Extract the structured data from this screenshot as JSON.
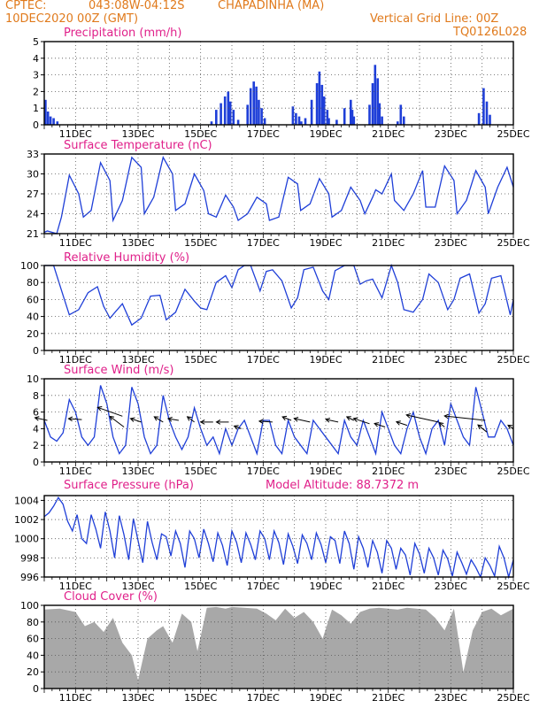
{
  "header": {
    "org": "CPTEC:",
    "coords": "043:08W-04:12S",
    "station": "CHAPADINHA (MA)",
    "date": "10DEC2020 00Z (GMT)",
    "grid_note": "Vertical Grid Line: 00Z",
    "model_code": "TQ0126L028"
  },
  "colors": {
    "header": "#e07a1c",
    "title": "#e0208a",
    "line": "#1f3fd8",
    "bar": "#1f3fd8",
    "cloud": "#a8a8a8"
  },
  "chart_data": [
    {
      "id": "precip",
      "type": "bar",
      "title": "Precipitation (mm/h)",
      "x_range_days": [
        10,
        25
      ],
      "ylim": [
        0,
        5
      ],
      "yticks": [
        0,
        1,
        2,
        3,
        4,
        5
      ],
      "x": [
        10.04,
        10.12,
        10.2,
        10.3,
        10.42,
        15.35,
        15.5,
        15.65,
        15.78,
        15.88,
        15.95,
        16.05,
        16.2,
        16.5,
        16.6,
        16.7,
        16.78,
        16.86,
        16.95,
        17.05,
        17.95,
        18.05,
        18.15,
        18.22,
        18.35,
        18.55,
        18.72,
        18.8,
        18.88,
        18.95,
        19.05,
        19.1,
        19.35,
        19.6,
        19.8,
        19.85,
        19.9,
        20.4,
        20.5,
        20.58,
        20.66,
        20.72,
        20.8,
        21.3,
        21.4,
        21.5,
        23.9,
        24.05,
        24.15,
        24.25
      ],
      "values": [
        1.5,
        0.8,
        0.5,
        0.4,
        0.2,
        0.2,
        0.9,
        1.3,
        1.7,
        2.0,
        1.4,
        0.9,
        0.3,
        1.2,
        2.2,
        2.6,
        2.3,
        1.5,
        1.0,
        0.4,
        1.1,
        0.7,
        0.5,
        0.2,
        0.4,
        1.5,
        2.5,
        3.2,
        2.4,
        1.7,
        0.9,
        0.4,
        0.3,
        1.0,
        1.5,
        0.9,
        0.5,
        1.2,
        2.5,
        3.6,
        2.8,
        1.3,
        0.5,
        0.2,
        1.2,
        0.5,
        0.7,
        2.2,
        1.4,
        0.6
      ]
    },
    {
      "id": "temp",
      "type": "line",
      "title": "Surface Temperature (nC)",
      "x_range_days": [
        10,
        25
      ],
      "ylim": [
        21,
        33
      ],
      "yticks": [
        21,
        24,
        27,
        30,
        33
      ],
      "x": [
        10,
        10.1,
        10.4,
        10.55,
        10.8,
        11.1,
        11.25,
        11.5,
        11.8,
        12.1,
        12.2,
        12.5,
        12.8,
        13.1,
        13.2,
        13.5,
        13.8,
        14.1,
        14.2,
        14.5,
        14.8,
        15.1,
        15.25,
        15.5,
        15.8,
        16.05,
        16.2,
        16.5,
        16.8,
        17.1,
        17.2,
        17.5,
        17.8,
        18.1,
        18.2,
        18.5,
        18.8,
        19.1,
        19.2,
        19.5,
        19.8,
        20.1,
        20.25,
        20.5,
        20.6,
        20.8,
        21.1,
        21.2,
        21.5,
        21.8,
        22.1,
        22.2,
        22.5,
        22.8,
        23.1,
        23.2,
        23.5,
        23.8,
        24.1,
        24.2,
        24.5,
        24.8,
        25
      ],
      "values": [
        21.2,
        21.4,
        21.0,
        23.5,
        29.8,
        27.0,
        23.5,
        24.5,
        31.7,
        29.0,
        23.0,
        26.0,
        32.5,
        31.0,
        24.0,
        26.5,
        32.5,
        30.0,
        24.5,
        25.5,
        30.0,
        27.5,
        24.0,
        23.5,
        26.8,
        25.0,
        23.0,
        24.0,
        26.5,
        25.5,
        23.0,
        23.5,
        29.5,
        28.5,
        24.5,
        25.5,
        29.3,
        27.0,
        23.5,
        24.5,
        28.0,
        26.0,
        24.0,
        26.5,
        27.6,
        27.0,
        30.0,
        26.0,
        24.5,
        27.0,
        30.5,
        25.0,
        25.0,
        31.2,
        29.0,
        24.0,
        26.0,
        30.5,
        28.0,
        24.0,
        28.0,
        31.0,
        28.0
      ]
    },
    {
      "id": "rh",
      "type": "line",
      "title": "Relative Humidity (%)",
      "x_range_days": [
        10,
        25
      ],
      "ylim": [
        0,
        100
      ],
      "yticks": [
        0,
        20,
        40,
        60,
        80,
        100
      ],
      "x": [
        10,
        10.3,
        10.6,
        10.8,
        11.1,
        11.4,
        11.7,
        11.9,
        12.1,
        12.5,
        12.8,
        13.1,
        13.4,
        13.7,
        13.9,
        14.2,
        14.5,
        14.8,
        15.0,
        15.2,
        15.5,
        15.8,
        16.0,
        16.2,
        16.4,
        16.6,
        16.9,
        17.1,
        17.3,
        17.6,
        17.9,
        18.1,
        18.3,
        18.6,
        18.9,
        19.1,
        19.3,
        19.6,
        19.9,
        20.1,
        20.3,
        20.5,
        20.8,
        21.1,
        21.3,
        21.5,
        21.8,
        22.1,
        22.3,
        22.6,
        22.9,
        23.1,
        23.3,
        23.6,
        23.9,
        24.1,
        24.3,
        24.6,
        24.9,
        25
      ],
      "values": [
        100,
        100,
        65,
        42,
        48,
        68,
        75,
        52,
        38,
        55,
        30,
        38,
        64,
        65,
        36,
        45,
        72,
        58,
        50,
        48,
        80,
        88,
        74,
        95,
        100,
        100,
        70,
        93,
        95,
        82,
        50,
        62,
        95,
        98,
        70,
        60,
        94,
        100,
        100,
        78,
        82,
        84,
        62,
        100,
        80,
        48,
        45,
        60,
        90,
        80,
        48,
        60,
        85,
        90,
        44,
        55,
        85,
        88,
        42,
        60
      ]
    },
    {
      "id": "wind",
      "type": "line",
      "title": "Surface Wind (m/s)",
      "x_range_days": [
        10,
        25
      ],
      "ylim": [
        0,
        10
      ],
      "yticks": [
        0,
        2,
        4,
        6,
        8,
        10
      ],
      "x": [
        10,
        10.2,
        10.4,
        10.6,
        10.8,
        11.0,
        11.2,
        11.4,
        11.6,
        11.8,
        12.0,
        12.2,
        12.4,
        12.6,
        12.8,
        13.0,
        13.2,
        13.4,
        13.6,
        13.8,
        14.0,
        14.2,
        14.4,
        14.6,
        14.8,
        15.0,
        15.2,
        15.4,
        15.6,
        15.8,
        16.0,
        16.2,
        16.4,
        16.6,
        16.8,
        17.0,
        17.2,
        17.4,
        17.6,
        17.8,
        18.0,
        18.2,
        18.4,
        18.6,
        18.8,
        19.0,
        19.2,
        19.4,
        19.6,
        19.8,
        20.0,
        20.2,
        20.4,
        20.6,
        20.8,
        21.0,
        21.2,
        21.4,
        21.6,
        21.8,
        22.0,
        22.2,
        22.4,
        22.6,
        22.8,
        23.0,
        23.2,
        23.4,
        23.6,
        23.8,
        24.0,
        24.2,
        24.4,
        24.6,
        24.8,
        25
      ],
      "values": [
        5,
        3,
        2.5,
        3.5,
        7.5,
        6,
        3,
        2,
        3,
        9.2,
        7,
        3,
        1,
        2,
        9,
        7,
        3,
        1,
        2,
        8,
        5,
        3,
        1.5,
        3,
        6.5,
        4,
        2,
        3,
        1,
        4,
        2,
        4,
        5,
        3,
        1,
        5,
        5,
        2,
        1,
        5,
        3,
        2,
        1,
        5,
        4,
        3,
        2,
        1,
        5,
        3,
        2,
        5,
        3,
        1,
        6,
        4,
        2,
        1,
        4,
        6,
        3,
        1,
        4,
        5,
        2,
        7,
        5,
        3,
        2,
        9,
        6,
        3,
        3,
        5,
        4,
        2
      ],
      "arrows": [
        {
          "x": 10.1,
          "y": 5,
          "dx": -14,
          "dy": -3
        },
        {
          "x": 11.2,
          "y": 5.1,
          "dx": -15,
          "dy": -1
        },
        {
          "x": 12.5,
          "y": 5.5,
          "dx": -28,
          "dy": -10
        },
        {
          "x": 12.55,
          "y": 4.2,
          "dx": -16,
          "dy": -12
        },
        {
          "x": 13.1,
          "y": 4.8,
          "dx": -12,
          "dy": -4
        },
        {
          "x": 13.8,
          "y": 4.8,
          "dx": -10,
          "dy": -6
        },
        {
          "x": 14.3,
          "y": 5,
          "dx": -12,
          "dy": -2
        },
        {
          "x": 14.8,
          "y": 4.8,
          "dx": -8,
          "dy": -6
        },
        {
          "x": 15.4,
          "y": 4.8,
          "dx": -14,
          "dy": 0
        },
        {
          "x": 15.9,
          "y": 4.8,
          "dx": -14,
          "dy": 0
        },
        {
          "x": 16.3,
          "y": 4,
          "dx": -8,
          "dy": -3
        },
        {
          "x": 17.3,
          "y": 4.8,
          "dx": -15,
          "dy": -1
        },
        {
          "x": 17.9,
          "y": 5,
          "dx": -10,
          "dy": -4
        },
        {
          "x": 18.5,
          "y": 4.8,
          "dx": -18,
          "dy": -4
        },
        {
          "x": 19.4,
          "y": 4.8,
          "dx": -14,
          "dy": -3
        },
        {
          "x": 19.9,
          "y": 5,
          "dx": -8,
          "dy": -4
        },
        {
          "x": 20.4,
          "y": 4.6,
          "dx": -18,
          "dy": -6
        },
        {
          "x": 20.9,
          "y": 4.2,
          "dx": -12,
          "dy": -4
        },
        {
          "x": 21.6,
          "y": 4.4,
          "dx": -12,
          "dy": -4
        },
        {
          "x": 22.6,
          "y": 4.8,
          "dx": -36,
          "dy": -8
        },
        {
          "x": 22.8,
          "y": 4.2,
          "dx": -6,
          "dy": -5
        },
        {
          "x": 24.1,
          "y": 5,
          "dx": -46,
          "dy": -5
        },
        {
          "x": 24.15,
          "y": 3.6,
          "dx": -10,
          "dy": -8
        },
        {
          "x": 25.0,
          "y": 4,
          "dx": -6,
          "dy": -4
        }
      ]
    },
    {
      "id": "pressure",
      "type": "line",
      "title": "Surface Pressure (hPa)",
      "subtitle": "Model Altitude: 88.7372 m",
      "x_range_days": [
        10,
        25
      ],
      "ylim": [
        996,
        1004.5
      ],
      "yticks": [
        996,
        998,
        1000,
        1002,
        1004
      ],
      "x": [
        10,
        10.15,
        10.3,
        10.45,
        10.6,
        10.75,
        10.9,
        11.05,
        11.2,
        11.35,
        11.5,
        11.65,
        11.8,
        11.95,
        12.1,
        12.25,
        12.4,
        12.55,
        12.7,
        12.85,
        13.0,
        13.15,
        13.3,
        13.45,
        13.6,
        13.75,
        13.9,
        14.05,
        14.2,
        14.35,
        14.5,
        14.65,
        14.8,
        14.95,
        15.1,
        15.25,
        15.4,
        15.55,
        15.7,
        15.85,
        16.0,
        16.15,
        16.3,
        16.45,
        16.6,
        16.75,
        16.9,
        17.05,
        17.2,
        17.35,
        17.5,
        17.65,
        17.8,
        17.95,
        18.1,
        18.25,
        18.4,
        18.55,
        18.7,
        18.85,
        19.0,
        19.15,
        19.3,
        19.45,
        19.6,
        19.75,
        19.9,
        20.05,
        20.2,
        20.35,
        20.5,
        20.65,
        20.8,
        20.95,
        21.1,
        21.25,
        21.4,
        21.55,
        21.7,
        21.85,
        22.0,
        22.15,
        22.3,
        22.45,
        22.6,
        22.75,
        22.9,
        23.05,
        23.2,
        23.35,
        23.5,
        23.65,
        23.8,
        23.95,
        24.1,
        24.25,
        24.4,
        24.55,
        24.7,
        24.85,
        25
      ],
      "values": [
        1002.3,
        1002.7,
        1003.4,
        1004.3,
        1003.6,
        1001.8,
        1000.8,
        1002.5,
        1000.0,
        999.5,
        1002.5,
        1001.0,
        999.0,
        1002.8,
        1000.8,
        998.0,
        1002.4,
        1000.4,
        997.8,
        1002.1,
        999.8,
        997.5,
        1001.8,
        999.6,
        997.8,
        1000.5,
        1000.2,
        998.2,
        1000.8,
        999.5,
        997.0,
        1000.8,
        1000.0,
        998.0,
        1001.0,
        999.5,
        997.6,
        1000.6,
        999.3,
        997.2,
        1000.8,
        999.6,
        997.5,
        1000.6,
        999.4,
        997.8,
        1000.8,
        1000.0,
        997.8,
        1000.8,
        999.6,
        997.3,
        1000.5,
        999.2,
        997.4,
        1000.4,
        999.5,
        997.8,
        1000.6,
        999.4,
        997.5,
        1000.2,
        999.8,
        997.4,
        1000.8,
        999.5,
        996.8,
        1000.2,
        999.0,
        997.0,
        999.8,
        998.6,
        996.4,
        999.8,
        999.0,
        996.8,
        999.0,
        998.3,
        996.2,
        999.5,
        998.4,
        996.4,
        999.0,
        998.0,
        996.2,
        998.8,
        997.9,
        996.1,
        998.6,
        997.5,
        996.3,
        997.8,
        997.0,
        996.0,
        998.0,
        997.2,
        996.1,
        999.2,
        998.0,
        996.0,
        997.8
      ]
    },
    {
      "id": "cloud",
      "type": "area",
      "title": "Cloud Cover (%)",
      "x_range_days": [
        10,
        25
      ],
      "ylim": [
        0,
        100
      ],
      "yticks": [
        0,
        20,
        40,
        60,
        80,
        100
      ],
      "x": [
        10,
        10.5,
        11,
        11.3,
        11.6,
        11.9,
        12.2,
        12.5,
        12.8,
        13.0,
        13.3,
        13.6,
        13.8,
        14.1,
        14.4,
        14.7,
        14.9,
        15.2,
        15.5,
        15.8,
        16.0,
        16.4,
        16.8,
        17.1,
        17.4,
        17.7,
        18.0,
        18.3,
        18.6,
        18.9,
        19.2,
        19.5,
        19.8,
        20.1,
        20.4,
        20.7,
        21.0,
        21.3,
        21.6,
        21.9,
        22.2,
        22.5,
        22.8,
        23.1,
        23.4,
        23.7,
        24.0,
        24.3,
        24.6,
        25
      ],
      "values": [
        95,
        96,
        92,
        75,
        80,
        68,
        85,
        55,
        40,
        10,
        60,
        70,
        75,
        55,
        90,
        80,
        45,
        97,
        98,
        96,
        98,
        97,
        96,
        90,
        82,
        96,
        85,
        92,
        80,
        60,
        95,
        88,
        78,
        92,
        96,
        97,
        96,
        95,
        97,
        96,
        95,
        85,
        70,
        96,
        20,
        70,
        92,
        96,
        88,
        96
      ]
    }
  ],
  "x_tick_labels": [
    "11DEC",
    "13DEC",
    "15DEC",
    "17DEC",
    "19DEC",
    "21DEC",
    "23DEC",
    "25DEC"
  ]
}
